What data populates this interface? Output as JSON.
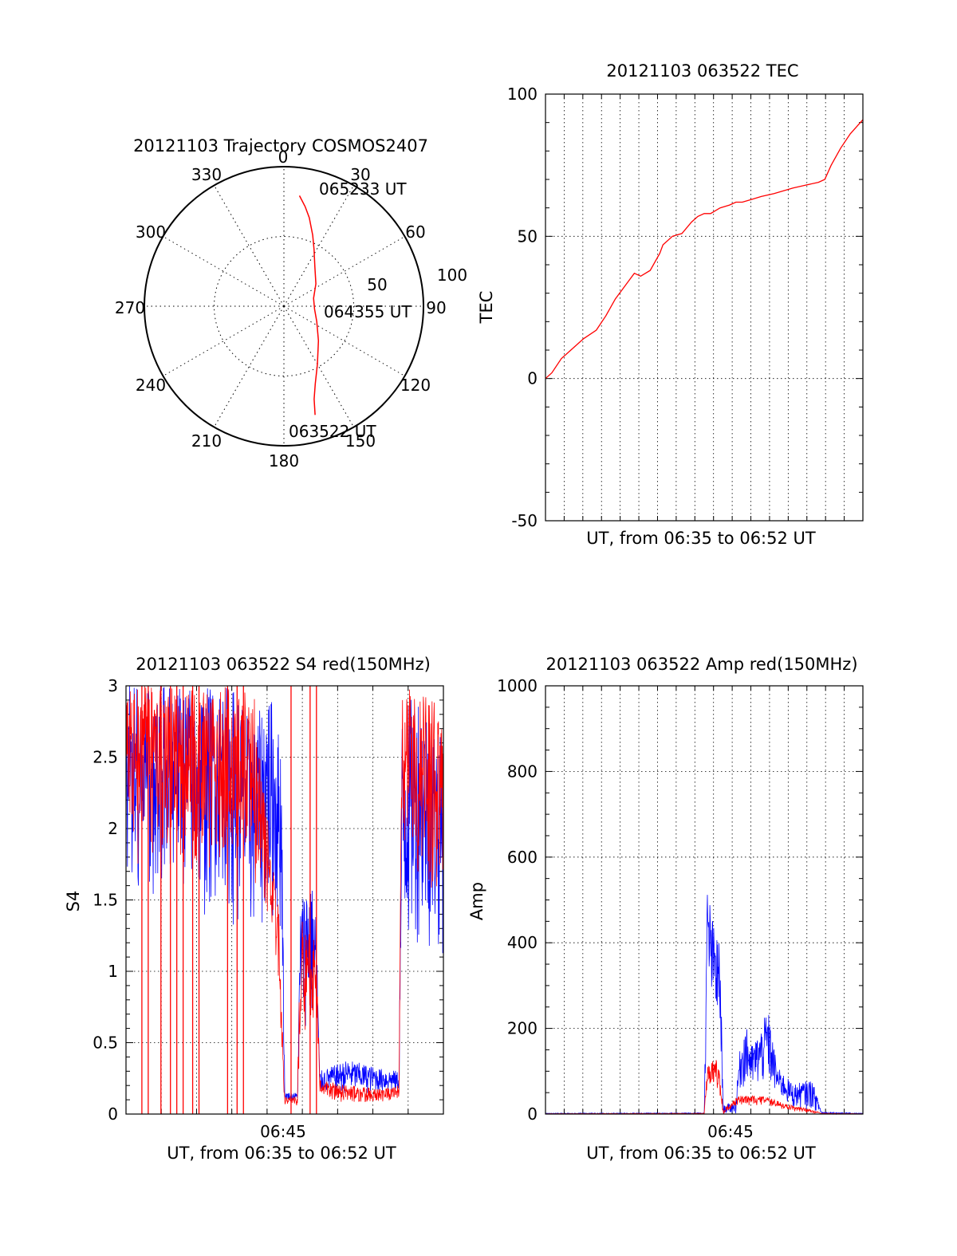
{
  "colors": {
    "red": "#ff0000",
    "blue": "#0000ff",
    "axis": "#000000",
    "grid": "#000000"
  },
  "chart_data": [
    {
      "id": "trajectory",
      "type": "polar",
      "title": "20121103 Trajectory COSMOS2407",
      "angle_labels": [
        "0",
        "30",
        "60",
        "90",
        "120",
        "150",
        "180",
        "210",
        "240",
        "270",
        "300",
        "330"
      ],
      "radial_labels": [
        "50",
        "100"
      ],
      "radial_values": [
        50,
        100
      ],
      "rlim": [
        0,
        100
      ],
      "time_labels": [
        "065233 UT",
        "064355 UT",
        "063522 UT"
      ],
      "series": [
        {
          "color": "red",
          "points_az_r": [
            [
              8,
              80
            ],
            [
              12,
              73
            ],
            [
              16,
              66
            ],
            [
              22,
              55
            ],
            [
              28,
              46
            ],
            [
              38,
              36
            ],
            [
              55,
              28
            ],
            [
              75,
              22
            ],
            [
              95,
              22
            ],
            [
              115,
              26
            ],
            [
              135,
              35
            ],
            [
              150,
              48
            ],
            [
              158,
              60
            ],
            [
              162,
              70
            ],
            [
              164,
              81
            ]
          ]
        }
      ]
    },
    {
      "id": "tec",
      "type": "line",
      "title": "20121103 063522 TEC",
      "ylabel": "TEC",
      "xlabel": "UT, from 06:35 to 06:52 UT",
      "ylim": [
        -50,
        100
      ],
      "yticks": [
        "100",
        "50",
        "0",
        "-50"
      ],
      "ytick_values": [
        100,
        50,
        0,
        -50
      ],
      "xlim": [
        0,
        1
      ],
      "grid": true,
      "series": [
        {
          "color": "red",
          "x": [
            0,
            0.02,
            0.05,
            0.08,
            0.12,
            0.16,
            0.19,
            0.22,
            0.26,
            0.28,
            0.3,
            0.33,
            0.36,
            0.37,
            0.4,
            0.43,
            0.46,
            0.48,
            0.5,
            0.52,
            0.55,
            0.58,
            0.6,
            0.62,
            0.65,
            0.68,
            0.72,
            0.75,
            0.78,
            0.82,
            0.86,
            0.88,
            0.9,
            0.93,
            0.96,
            1.0
          ],
          "y": [
            0,
            2,
            7,
            10,
            14,
            17,
            22,
            28,
            34,
            37,
            36,
            38,
            44,
            47,
            50,
            51,
            55,
            57,
            58,
            58,
            60,
            61,
            62,
            62,
            63,
            64,
            65,
            66,
            67,
            68,
            69,
            70,
            75,
            81,
            86,
            91
          ]
        }
      ]
    },
    {
      "id": "s4",
      "type": "line",
      "title": "20121103 063522 S4 red(150MHz)",
      "ylabel": "S4",
      "xlabel": "UT, from 06:35 to 06:52 UT",
      "xtick_labels": [
        "06:45"
      ],
      "xtick_positions": [
        0.5
      ],
      "ylim": [
        0,
        3
      ],
      "yticks": [
        "3",
        "2.5",
        "2",
        "1.5",
        "1",
        "0.5",
        "0"
      ],
      "ytick_values": [
        3,
        2.5,
        2,
        1.5,
        1,
        0.5,
        0
      ],
      "xlim": [
        0,
        1
      ],
      "grid": true,
      "series": [
        {
          "color": "blue",
          "envelope": [
            [
              0,
              1.4,
              3.0
            ],
            [
              0.05,
              1.6,
              3.0
            ],
            [
              0.1,
              1.4,
              3.0
            ],
            [
              0.15,
              1.6,
              3.0
            ],
            [
              0.2,
              1.5,
              3.0
            ],
            [
              0.25,
              1.3,
              3.0
            ],
            [
              0.3,
              1.6,
              3.0
            ],
            [
              0.35,
              1.2,
              3.0
            ],
            [
              0.4,
              1.2,
              2.7
            ],
            [
              0.45,
              1.3,
              3.0
            ],
            [
              0.49,
              1.2,
              2.6
            ],
            [
              0.5,
              0.1,
              0.15
            ],
            [
              0.54,
              0.08,
              0.15
            ],
            [
              0.55,
              0.6,
              1.5
            ],
            [
              0.58,
              0.6,
              1.7
            ],
            [
              0.6,
              0.6,
              1.4
            ],
            [
              0.61,
              0.14,
              0.3
            ],
            [
              0.7,
              0.14,
              0.38
            ],
            [
              0.8,
              0.14,
              0.32
            ],
            [
              0.86,
              0.14,
              0.3
            ],
            [
              0.87,
              1.0,
              2.8
            ],
            [
              0.92,
              1.2,
              3.0
            ],
            [
              0.96,
              1.1,
              2.8
            ],
            [
              1.0,
              1.1,
              2.6
            ]
          ]
        },
        {
          "color": "red",
          "envelope": [
            [
              0,
              1.7,
              3.0
            ],
            [
              0.1,
              1.8,
              3.0
            ],
            [
              0.2,
              1.7,
              3.0
            ],
            [
              0.3,
              1.7,
              3.0
            ],
            [
              0.4,
              1.6,
              3.0
            ],
            [
              0.45,
              1.3,
              2.0
            ],
            [
              0.48,
              0.8,
              1.5
            ],
            [
              0.5,
              0.06,
              0.12
            ],
            [
              0.54,
              0.05,
              0.12
            ],
            [
              0.55,
              0.6,
              1.4
            ],
            [
              0.6,
              0.5,
              1.2
            ],
            [
              0.61,
              0.1,
              0.25
            ],
            [
              0.7,
              0.08,
              0.2
            ],
            [
              0.8,
              0.08,
              0.18
            ],
            [
              0.86,
              0.1,
              0.2
            ],
            [
              0.87,
              1.5,
              3.0
            ],
            [
              0.95,
              1.6,
              3.0
            ],
            [
              1.0,
              1.5,
              2.8
            ]
          ]
        }
      ],
      "red_drops_x": [
        0.05,
        0.07,
        0.11,
        0.14,
        0.16,
        0.18,
        0.21,
        0.23,
        0.32,
        0.35,
        0.37,
        0.52,
        0.58,
        0.6
      ]
    },
    {
      "id": "amp",
      "type": "line",
      "title": "20121103 063522 Amp red(150MHz)",
      "ylabel": "Amp",
      "xlabel": "UT, from 06:35 to 06:52 UT",
      "xtick_labels": [
        "06:45"
      ],
      "xtick_positions": [
        0.5
      ],
      "ylim": [
        0,
        1000
      ],
      "yticks": [
        "1000",
        "800",
        "600",
        "400",
        "200",
        "0"
      ],
      "ytick_values": [
        1000,
        800,
        600,
        400,
        200,
        0
      ],
      "xlim": [
        0,
        1
      ],
      "grid": true,
      "series": [
        {
          "color": "blue",
          "envelope": [
            [
              0,
              0,
              2
            ],
            [
              0.5,
              0,
              3
            ],
            [
              0.51,
              250,
              540
            ],
            [
              0.53,
              220,
              440
            ],
            [
              0.55,
              150,
              400
            ],
            [
              0.56,
              0,
              20
            ],
            [
              0.6,
              0,
              30
            ],
            [
              0.61,
              50,
              140
            ],
            [
              0.63,
              60,
              210
            ],
            [
              0.65,
              50,
              160
            ],
            [
              0.68,
              60,
              200
            ],
            [
              0.7,
              60,
              250
            ],
            [
              0.73,
              40,
              110
            ],
            [
              0.78,
              10,
              70
            ],
            [
              0.84,
              10,
              80
            ],
            [
              0.87,
              0,
              5
            ],
            [
              1.0,
              0,
              2
            ]
          ]
        },
        {
          "color": "red",
          "envelope": [
            [
              0,
              0,
              1
            ],
            [
              0.5,
              0,
              2
            ],
            [
              0.51,
              70,
              120
            ],
            [
              0.54,
              60,
              130
            ],
            [
              0.55,
              40,
              90
            ],
            [
              0.56,
              0,
              10
            ],
            [
              0.61,
              20,
              45
            ],
            [
              0.7,
              20,
              40
            ],
            [
              0.75,
              10,
              25
            ],
            [
              0.84,
              2,
              10
            ],
            [
              0.87,
              0,
              2
            ],
            [
              1.0,
              0,
              1
            ]
          ]
        }
      ]
    }
  ]
}
